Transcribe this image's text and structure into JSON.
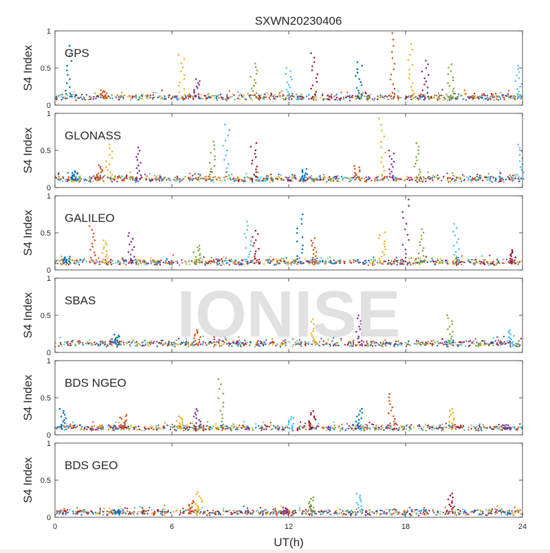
{
  "chart_data": {
    "type": "scatter",
    "title": "SXWN20230406",
    "xlabel": "UT(h)",
    "ylabel": "S4 Index",
    "xlim": [
      0,
      24
    ],
    "ylim": [
      0,
      1
    ],
    "x_ticks": [
      "0",
      "6",
      "12",
      "18",
      "24"
    ],
    "y_ticks": [
      "0",
      "0.5",
      "1"
    ],
    "watermark": "IONISE",
    "series_colors": [
      "#0072BD",
      "#D95319",
      "#EDB120",
      "#7E2F8E",
      "#77AC30",
      "#4DBEEE",
      "#A2142F"
    ],
    "panels": [
      {
        "name": "GPS",
        "baseline": 0.09,
        "spikes": [
          [
            0.7,
            0.8
          ],
          [
            2.5,
            0.2
          ],
          [
            6.5,
            0.68
          ],
          [
            7.3,
            0.35
          ],
          [
            10.2,
            0.56
          ],
          [
            12.0,
            0.5
          ],
          [
            13.3,
            0.7
          ],
          [
            15.6,
            0.58
          ],
          [
            17.3,
            0.97
          ],
          [
            18.3,
            0.82
          ],
          [
            19.0,
            0.6
          ],
          [
            20.3,
            0.55
          ],
          [
            23.8,
            0.53
          ]
        ]
      },
      {
        "name": "GLONASS",
        "baseline": 0.1,
        "spikes": [
          [
            1.0,
            0.22
          ],
          [
            2.3,
            0.3
          ],
          [
            2.8,
            0.58
          ],
          [
            4.3,
            0.54
          ],
          [
            8.1,
            0.62
          ],
          [
            8.8,
            0.85
          ],
          [
            10.2,
            0.6
          ],
          [
            12.8,
            0.25
          ],
          [
            15.5,
            0.29
          ],
          [
            16.8,
            0.93
          ],
          [
            17.3,
            0.5
          ],
          [
            18.6,
            0.6
          ],
          [
            23.9,
            0.58
          ]
        ]
      },
      {
        "name": "GALILEO",
        "baseline": 0.09,
        "spikes": [
          [
            0.6,
            0.18
          ],
          [
            1.9,
            0.59
          ],
          [
            2.6,
            0.4
          ],
          [
            3.9,
            0.5
          ],
          [
            7.3,
            0.33
          ],
          [
            9.9,
            0.65
          ],
          [
            10.3,
            0.53
          ],
          [
            12.6,
            0.75
          ],
          [
            13.3,
            0.43
          ],
          [
            16.8,
            0.51
          ],
          [
            18.0,
            0.95
          ],
          [
            18.8,
            0.55
          ],
          [
            20.6,
            0.62
          ],
          [
            23.5,
            0.27
          ]
        ]
      },
      {
        "name": "SBAS",
        "baseline": 0.1,
        "spikes": [
          [
            3.2,
            0.24
          ],
          [
            7.3,
            0.3
          ],
          [
            13.3,
            0.45
          ],
          [
            15.6,
            0.5
          ],
          [
            20.3,
            0.5
          ],
          [
            23.4,
            0.3
          ]
        ]
      },
      {
        "name": "BDS NGEO",
        "baseline": 0.08,
        "spikes": [
          [
            0.4,
            0.35
          ],
          [
            3.5,
            0.27
          ],
          [
            6.4,
            0.25
          ],
          [
            7.3,
            0.35
          ],
          [
            8.5,
            0.75
          ],
          [
            12.1,
            0.24
          ],
          [
            13.2,
            0.32
          ],
          [
            15.6,
            0.35
          ],
          [
            17.3,
            0.55
          ],
          [
            20.4,
            0.35
          ],
          [
            23.2,
            0.1
          ]
        ]
      },
      {
        "name": "BDS GEO",
        "baseline": 0.05,
        "spikes": [
          [
            3.2,
            0.1
          ],
          [
            7.0,
            0.22
          ],
          [
            7.4,
            0.34
          ],
          [
            11.8,
            0.13
          ],
          [
            13.2,
            0.27
          ],
          [
            15.6,
            0.32
          ],
          [
            20.3,
            0.32
          ]
        ]
      }
    ]
  }
}
